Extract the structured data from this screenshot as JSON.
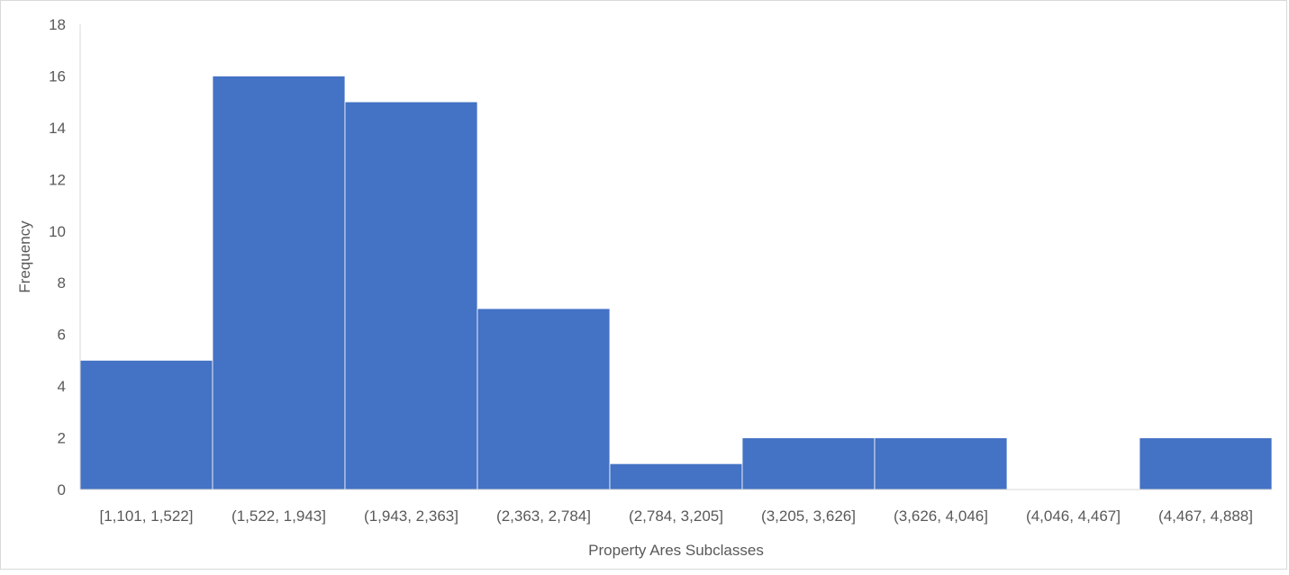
{
  "chart_data": {
    "type": "bar",
    "title": "",
    "xlabel": "Property Ares Subclasses",
    "ylabel": "Frequency",
    "categories": [
      "[1,101, 1,522]",
      "(1,522, 1,943]",
      "(1,943, 2,363]",
      "(2,363, 2,784]",
      "(2,784, 3,205]",
      "(3,205, 3,626]",
      "(3,626, 4,046]",
      "(4,046, 4,467]",
      "(4,467, 4,888]"
    ],
    "values": [
      5,
      16,
      15,
      7,
      1,
      2,
      2,
      0,
      2
    ],
    "ylim": [
      0,
      18
    ],
    "yticks": [
      "0",
      "2",
      "4",
      "6",
      "8",
      "10",
      "12",
      "14",
      "16",
      "18"
    ],
    "grid": false,
    "legend": "none",
    "bar_color": "#4472c4",
    "bar_gap": "none (histogram)"
  }
}
